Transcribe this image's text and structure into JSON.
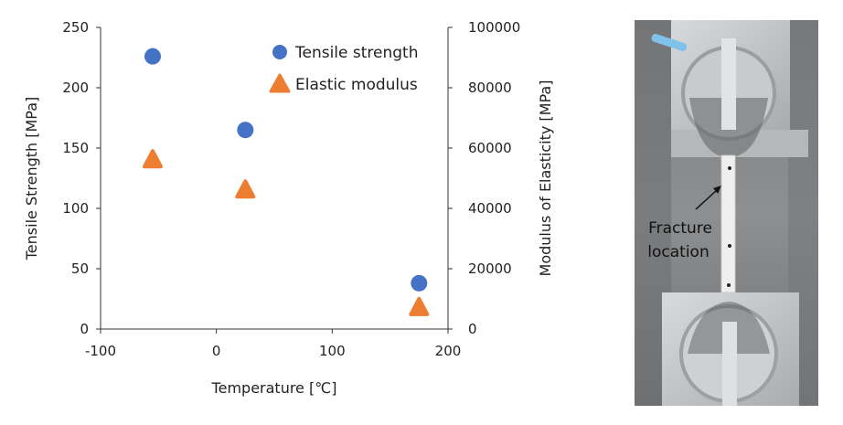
{
  "chart_data": {
    "type": "scatter",
    "xlabel": "Temperature [℃]",
    "ylabel": "Tensile Strength [MPa]",
    "y2label": "Modulus of Elasticity [MPa]",
    "xlim": [
      -100,
      200
    ],
    "ylim": [
      0,
      250
    ],
    "y2lim": [
      0,
      100000
    ],
    "x_ticks": [
      "-100",
      "0",
      "100",
      "200"
    ],
    "y_ticks": [
      "0",
      "50",
      "100",
      "150",
      "200",
      "250"
    ],
    "y2_ticks": [
      "0",
      "20000",
      "40000",
      "60000",
      "80000",
      "100000"
    ],
    "grid": false,
    "legend_position": "top-right",
    "series": [
      {
        "name": "Tensile strength",
        "axis": "left",
        "marker": "circle",
        "color": "#4472C4",
        "x": [
          -55,
          25,
          175
        ],
        "y": [
          226,
          165,
          38
        ]
      },
      {
        "name": "Elastic modulus",
        "axis": "right",
        "marker": "triangle",
        "color": "#ED7D31",
        "x": [
          -55,
          25,
          175
        ],
        "y": [
          56000,
          46000,
          7000
        ]
      }
    ]
  },
  "photo": {
    "annotation_line1": "Fracture",
    "annotation_line2": "location"
  }
}
